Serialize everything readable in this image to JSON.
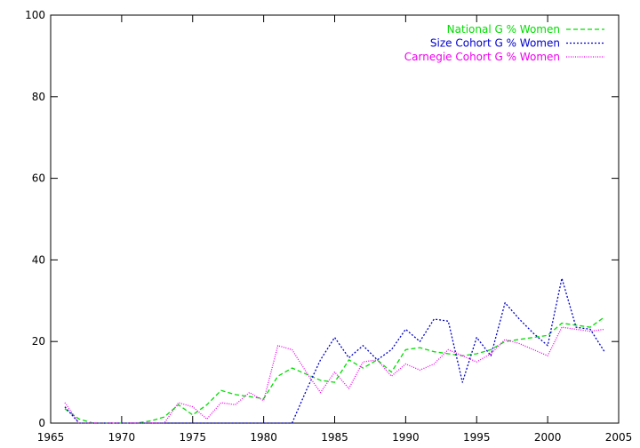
{
  "chart_data": {
    "type": "line",
    "title": "",
    "xlabel": "",
    "ylabel": "",
    "xlim": [
      1965,
      2005
    ],
    "ylim": [
      0,
      100
    ],
    "xticks": [
      1965,
      1970,
      1975,
      1980,
      1985,
      1990,
      1995,
      2000,
      2005
    ],
    "yticks": [
      0,
      20,
      40,
      60,
      80,
      100
    ],
    "grid": false,
    "legend_position": "top-right",
    "x": [
      1966,
      1967,
      1968,
      1969,
      1970,
      1971,
      1972,
      1973,
      1974,
      1975,
      1976,
      1977,
      1978,
      1979,
      1980,
      1981,
      1982,
      1983,
      1984,
      1985,
      1986,
      1987,
      1988,
      1989,
      1990,
      1991,
      1992,
      1993,
      1994,
      1995,
      1996,
      1997,
      1998,
      1999,
      2000,
      2001,
      2002,
      2003,
      2004
    ],
    "series": [
      {
        "name": "National G % Women",
        "color": "#00dd00",
        "dash": "dashed",
        "values": [
          3.5,
          1.0,
          0,
          0,
          0,
          0,
          0.5,
          1.5,
          4.5,
          2.0,
          4.5,
          8.0,
          7.0,
          6.5,
          6.0,
          11.5,
          13.5,
          12.0,
          10.5,
          10.0,
          15.5,
          13.5,
          15.5,
          12.5,
          18.0,
          18.5,
          17.5,
          17.0,
          16.5,
          17.0,
          18.0,
          20.0,
          20.5,
          21.0,
          21.5,
          24.5,
          24.0,
          23.5,
          26.0
        ]
      },
      {
        "name": "Size Cohort G % Women",
        "color": "#0000cc",
        "dash": "dotted",
        "values": [
          4.0,
          0,
          0,
          0,
          0,
          0,
          0,
          0,
          0,
          0,
          0,
          0,
          0,
          0,
          0,
          0,
          0,
          8.0,
          15.5,
          21.0,
          16.0,
          19.0,
          15.5,
          18.0,
          23.0,
          20.0,
          25.5,
          25.0,
          10.0,
          21.0,
          16.5,
          29.5,
          25.5,
          22.0,
          19.0,
          35.5,
          23.5,
          23.0,
          17.5
        ]
      },
      {
        "name": "Carnegie Cohort G % Women",
        "color": "#ee00ee",
        "dash": "fine",
        "values": [
          5.0,
          0,
          0,
          0,
          0,
          0,
          0,
          0,
          5.0,
          4.0,
          1.0,
          5.0,
          4.5,
          7.5,
          5.5,
          19.0,
          18.0,
          12.5,
          7.5,
          12.5,
          8.5,
          15.0,
          15.5,
          11.5,
          14.5,
          13.0,
          14.5,
          18.0,
          16.5,
          15.0,
          17.0,
          20.5,
          19.5,
          18.0,
          16.5,
          23.5,
          23.0,
          22.5,
          23.0
        ]
      }
    ]
  }
}
